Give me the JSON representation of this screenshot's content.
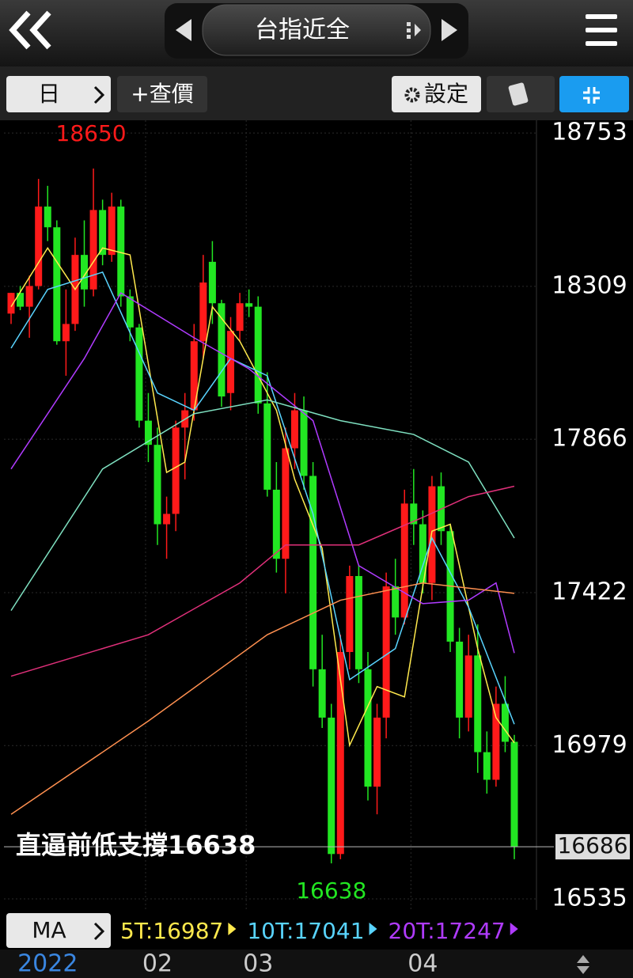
{
  "header": {
    "title": "台指近全"
  },
  "toolbar": {
    "period": "日",
    "quote": "+查價",
    "settings": "設定"
  },
  "chart_data": {
    "type": "candlestick",
    "open": [
      18230,
      18290,
      18250,
      18310,
      18540,
      18480,
      18150,
      18200,
      18400,
      18300,
      18530,
      18400,
      18540,
      18280,
      18190,
      17920,
      17850,
      17620,
      17650,
      17900,
      17950,
      18150,
      18380,
      18260,
      18000,
      18180,
      18260,
      18250,
      17970,
      17720,
      17520,
      17840,
      17950,
      17760,
      17200,
      17060,
      16665,
      17250,
      17470,
      17200,
      16860,
      17060,
      17440,
      17350,
      17680,
      17620,
      17450,
      17730,
      17600,
      17280,
      17060,
      17240,
      16960,
      16880,
      17100,
      16990
    ],
    "high": [
      18290,
      18310,
      18340,
      18620,
      18600,
      18500,
      18300,
      18450,
      18500,
      18650,
      18560,
      18580,
      18560,
      18300,
      18200,
      18000,
      17900,
      17700,
      17920,
      18000,
      18200,
      18400,
      18440,
      18270,
      18220,
      18290,
      18300,
      18280,
      18060,
      17800,
      17900,
      18000,
      17990,
      17800,
      17300,
      17100,
      17300,
      17500,
      17500,
      17250,
      17100,
      17480,
      17520,
      17720,
      17780,
      17660,
      17760,
      17770,
      17620,
      17320,
      17300,
      17330,
      17020,
      17150,
      17180,
      17010
    ],
    "low": [
      18200,
      18240,
      18160,
      18300,
      18440,
      18140,
      18050,
      18180,
      18250,
      18280,
      18370,
      18380,
      18250,
      18150,
      17900,
      17800,
      17560,
      17520,
      17600,
      17750,
      17920,
      18100,
      18200,
      17960,
      17950,
      18150,
      18220,
      17940,
      17700,
      17480,
      17420,
      17780,
      17720,
      17150,
      17030,
      16638,
      16650,
      17200,
      17160,
      16820,
      16780,
      17000,
      17300,
      17330,
      17560,
      17420,
      17400,
      17560,
      17250,
      17000,
      17020,
      16900,
      16840,
      16860,
      16960,
      16650
    ],
    "close": [
      18290,
      18250,
      18310,
      18540,
      18480,
      18150,
      18200,
      18400,
      18300,
      18530,
      18400,
      18540,
      18280,
      18190,
      17920,
      17850,
      17620,
      17650,
      17900,
      17950,
      18150,
      18320,
      18260,
      17990,
      18180,
      18260,
      18250,
      17970,
      17720,
      17520,
      17840,
      17950,
      17760,
      17200,
      17060,
      16665,
      17250,
      17470,
      17200,
      16860,
      17060,
      17440,
      17350,
      17680,
      17620,
      17450,
      17730,
      17600,
      17280,
      17060,
      17240,
      16960,
      16880,
      17100,
      16990,
      16686
    ],
    "categories": [
      null,
      null,
      null,
      null,
      "2022",
      null,
      null,
      null,
      null,
      null,
      null,
      null,
      null,
      null,
      null,
      null,
      "02",
      null,
      null,
      null,
      null,
      null,
      null,
      null,
      null,
      null,
      null,
      "03",
      null,
      null,
      null,
      null,
      null,
      null,
      null,
      null,
      null,
      null,
      null,
      null,
      null,
      null,
      null,
      null,
      null,
      "04",
      null,
      null,
      null,
      null,
      null,
      null,
      null,
      null,
      null,
      null
    ],
    "up_color": "#ff1a1a",
    "down_color": "#22e622",
    "ylim": [
      16503,
      18783
    ],
    "yticks": [
      18753,
      18309,
      17866,
      17422,
      16979,
      16535
    ],
    "high_label": 18650,
    "low_label": 16638,
    "annotation": "直逼前低支撐16638",
    "last_price": 16686,
    "lines": [
      {
        "label": "5T:16987",
        "color": "#ffe94d",
        "x": [
          0,
          4,
          7,
          10,
          13,
          17,
          19,
          22,
          25,
          29,
          31,
          34,
          37,
          40,
          43,
          46,
          48,
          51,
          53,
          55
        ],
        "values": [
          18250,
          18420,
          18300,
          18420,
          18400,
          17770,
          17800,
          18250,
          18150,
          17950,
          17750,
          17550,
          16980,
          17150,
          17120,
          17600,
          17620,
          17260,
          17060,
          16987
        ]
      },
      {
        "label": "10T:17041",
        "color": "#59d4ff",
        "x": [
          0,
          4,
          10,
          16,
          20,
          24,
          28,
          33,
          37,
          42,
          46,
          50,
          55
        ],
        "values": [
          18130,
          18300,
          18350,
          18000,
          17950,
          18100,
          18050,
          17650,
          17170,
          17260,
          17580,
          17380,
          17041
        ]
      },
      {
        "label": "20T:17247",
        "color": "#b03bff",
        "x": [
          0,
          8,
          12,
          20,
          26,
          33,
          38,
          45,
          50,
          53,
          55
        ],
        "values": [
          17780,
          18100,
          18290,
          18160,
          18070,
          17920,
          17500,
          17390,
          17400,
          17450,
          17247
        ]
      },
      {
        "color": "#7ee0c0",
        "x": [
          0,
          10,
          20,
          28,
          36,
          44,
          50,
          55
        ],
        "values": [
          17370,
          17780,
          17940,
          17980,
          17920,
          17880,
          17800,
          17580
        ]
      },
      {
        "color": "#e0307a",
        "x": [
          0,
          15,
          25,
          30,
          38,
          45,
          50,
          55
        ],
        "values": [
          17180,
          17300,
          17450,
          17560,
          17560,
          17640,
          17700,
          17730
        ]
      },
      {
        "color": "#ff9050",
        "x": [
          0,
          15,
          28,
          36,
          45,
          55
        ],
        "values": [
          16780,
          17050,
          17300,
          17400,
          17450,
          17420
        ]
      }
    ]
  },
  "legend": {
    "button": "MA"
  }
}
